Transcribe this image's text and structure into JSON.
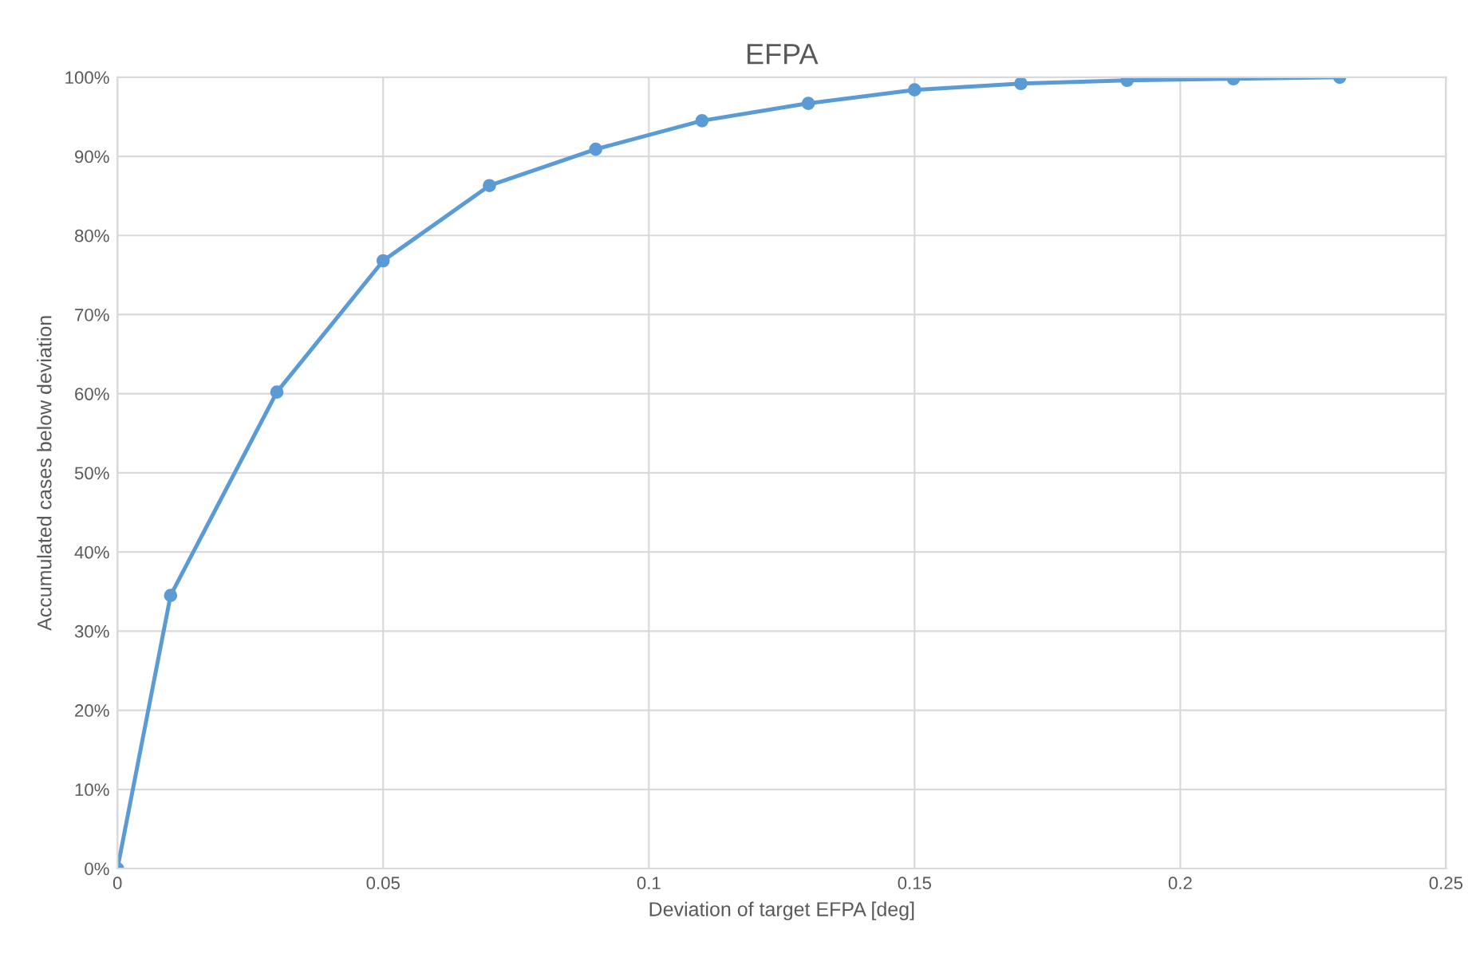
{
  "chart_data": {
    "type": "line",
    "title": "EFPA",
    "xlabel": "Deviation of target EFPA [deg]",
    "ylabel": "Accumulated cases below deviation",
    "x": [
      0,
      0.01,
      0.03,
      0.05,
      0.07,
      0.09,
      0.11,
      0.13,
      0.15,
      0.17,
      0.19,
      0.21,
      0.23
    ],
    "series": [
      {
        "color": "#5b9bd5",
        "values": [
          0,
          34.5,
          60.2,
          76.8,
          86.3,
          90.9,
          94.5,
          96.7,
          98.4,
          99.2,
          99.6,
          99.8,
          100
        ]
      }
    ],
    "xlim": [
      0,
      0.25
    ],
    "xticks": [
      0,
      0.05,
      0.1,
      0.15,
      0.2,
      0.25
    ],
    "ylim": [
      0,
      100
    ],
    "yticks": [
      {
        "value": 0,
        "label": "0%"
      },
      {
        "value": 10,
        "label": "10%"
      },
      {
        "value": 20,
        "label": "20%"
      },
      {
        "value": 30,
        "label": "30%"
      },
      {
        "value": 40,
        "label": "40%"
      },
      {
        "value": 50,
        "label": "50%"
      },
      {
        "value": 60,
        "label": "60%"
      },
      {
        "value": 70,
        "label": "70%"
      },
      {
        "value": 80,
        "label": "80%"
      },
      {
        "value": 90,
        "label": "90%"
      },
      {
        "value": 100,
        "label": "100%"
      }
    ],
    "grid": true,
    "marker": "circle",
    "line_style": "solid",
    "legend": false
  }
}
